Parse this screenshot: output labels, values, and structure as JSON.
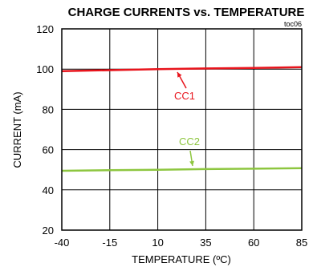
{
  "chart_data": {
    "type": "line",
    "title": "CHARGE CURRENTS vs. TEMPERATURE",
    "note": "toc06",
    "xlabel": "TEMPERATURE (ºC)",
    "ylabel": "CURRENT (mA)",
    "xlim": [
      -40,
      85
    ],
    "ylim": [
      20,
      120
    ],
    "xticks": [
      "-40",
      "-15",
      "10",
      "35",
      "60",
      "85"
    ],
    "yticks": [
      "120",
      "100",
      "80",
      "60",
      "40",
      "20"
    ],
    "xtick_values": [
      -40,
      -15,
      10,
      35,
      60,
      85
    ],
    "ytick_values": [
      120,
      100,
      80,
      60,
      40,
      20
    ],
    "grid": true,
    "series": [
      {
        "name": "CC1",
        "color": "#e8141c",
        "x": [
          -40,
          -15,
          10,
          35,
          60,
          85
        ],
        "y": [
          99.0,
          99.5,
          100.0,
          100.3,
          100.6,
          101.0
        ]
      },
      {
        "name": "CC2",
        "color": "#8dc63f",
        "x": [
          -40,
          -15,
          10,
          35,
          60,
          85
        ],
        "y": [
          49.5,
          49.8,
          50.0,
          50.3,
          50.5,
          50.8
        ]
      }
    ]
  }
}
